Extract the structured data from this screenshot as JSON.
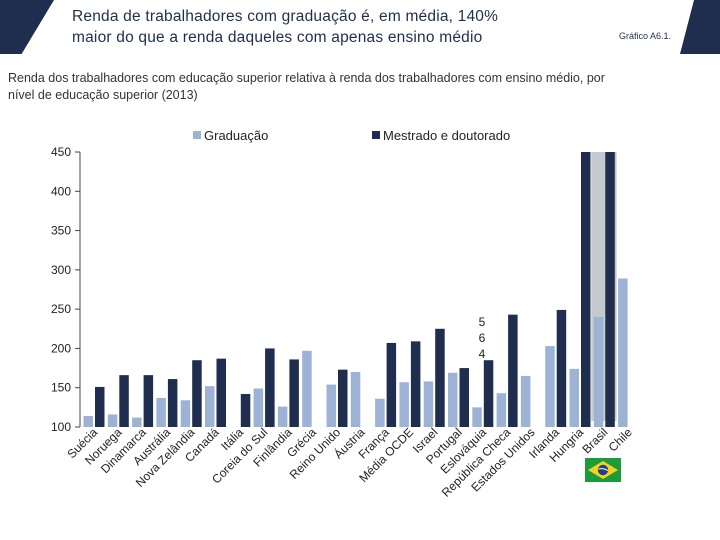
{
  "header": {
    "title_line1": "Renda de trabalhadores com graduação é, em média, 140%",
    "title_line2": "maior do que a renda daqueles com apenas ensino médio",
    "chart_code": "Gráfico A6.1."
  },
  "subtitle": {
    "line1": "Renda dos trabalhadores com educação superior relativa à renda dos trabalhadores com ensino médio, por",
    "line2": "nível de educação superior (2013)"
  },
  "colors": {
    "graduacao": "#9db3d6",
    "mestrado": "#1f2d4e",
    "highlight": "#c5c9d0",
    "accent": "#1f2d4e"
  },
  "annotation": {
    "oecd_digits": [
      "5",
      "6",
      "4"
    ]
  },
  "flag": {
    "icon": "brazil-flag-icon"
  },
  "chart_data": {
    "type": "bar",
    "title": "Renda dos trabalhadores com educação superior relativa à renda dos trabalhadores com ensino médio, por nível de educação superior (2013)",
    "ylim": [
      100,
      450
    ],
    "yticks": [
      100,
      150,
      200,
      250,
      300,
      350,
      400,
      450
    ],
    "grid": false,
    "legend_position": "top",
    "categories": [
      "Suécia",
      "Noruega",
      "Dinamarca",
      "Austrália",
      "Nova Zelândia",
      "Canadá",
      "Itália",
      "Coreia do Sul",
      "Finlândia",
      "Grécia",
      "Reino Unido",
      "Áustria",
      "França",
      "Média OCDE",
      "Israel",
      "Portugal",
      "Eslováquia",
      "República Checa",
      "Estados Unidos",
      "Irlanda",
      "Hungria",
      "Brasil",
      "Chile"
    ],
    "series": [
      {
        "name": "Graduação",
        "values": [
          114,
          116,
          112,
          137,
          134,
          152,
          null,
          149,
          126,
          197,
          154,
          170,
          136,
          157,
          158,
          169,
          125,
          143,
          165,
          203,
          174,
          240,
          289
        ]
      },
      {
        "name": "Mestrado e doutorado",
        "values": [
          151,
          166,
          166,
          161,
          185,
          187,
          142,
          200,
          186,
          null,
          173,
          null,
          207,
          209,
          225,
          175,
          185,
          243,
          null,
          249,
          450,
          450,
          null
        ]
      }
    ],
    "highlight_category": "Brasil"
  }
}
